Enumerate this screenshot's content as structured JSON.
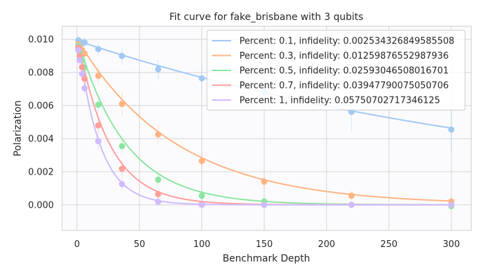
{
  "chart_data": {
    "type": "scatter",
    "title": "Fit curve for fake_brisbane with 3 qubits",
    "xlabel": "Benchmark Depth",
    "ylabel": "Polarization",
    "xlim": [
      -12,
      316
    ],
    "ylim": [
      -0.00155,
      0.0108
    ],
    "xticks": [
      0,
      50,
      100,
      150,
      200,
      250,
      300
    ],
    "yticks": [
      0.0,
      0.002,
      0.004,
      0.006,
      0.008,
      0.01
    ],
    "ytick_labels": [
      "0.000",
      "0.002",
      "0.004",
      "0.006",
      "0.008",
      "0.010"
    ],
    "grid": true,
    "legend_position": "top-right",
    "x": [
      1,
      2,
      4,
      6,
      17,
      36,
      65,
      100,
      150,
      220,
      300
    ],
    "series": [
      {
        "name": "Percent: 0.1, infidelity: 0.002534326849585508",
        "color": "#a1c9f4",
        "decay": 0.002534326849585508,
        "amplitude": 0.0099,
        "values": [
          0.00995,
          0.00982,
          0.00975,
          0.00982,
          0.00942,
          0.009,
          0.0082,
          0.00765,
          0.0068,
          0.00562,
          0.00455
        ],
        "errors": [
          0.0003,
          0.0003,
          0.0003,
          0.0003,
          0.0004,
          0.0005,
          0.0006,
          0.0008,
          0.001,
          0.0012,
          0.0013
        ]
      },
      {
        "name": "Percent: 0.3, infidelity: 0.01259876552987936",
        "color": "#ffb482",
        "decay": 0.01259876552987936,
        "amplitude": 0.0099,
        "values": [
          0.0097,
          0.00955,
          0.00935,
          0.00915,
          0.0078,
          0.0061,
          0.00425,
          0.00265,
          0.0014,
          0.00055,
          0.0002
        ],
        "errors": [
          0.0003,
          0.0003,
          0.0003,
          0.0003,
          0.0005,
          0.0007,
          0.0006,
          0.0005,
          0.0004,
          0.0003,
          0.0002
        ]
      },
      {
        "name": "Percent: 0.5, infidelity: 0.02593046508016701",
        "color": "#8de5a1",
        "decay": 0.02593046508016701,
        "amplitude": 0.0099,
        "values": [
          0.0096,
          0.0092,
          0.00875,
          0.0083,
          0.00605,
          0.00355,
          0.00152,
          0.00055,
          0.0002,
          0.0,
          -8e-05
        ],
        "errors": [
          0.0003,
          0.0003,
          0.0003,
          0.0004,
          0.0005,
          0.0005,
          0.0004,
          0.0003,
          0.0002,
          0.0002,
          0.0002
        ]
      },
      {
        "name": "Percent: 0.7, infidelity: 0.03947790075050706",
        "color": "#ff9f9b",
        "decay": 0.03947790075050706,
        "amplitude": 0.0099,
        "values": [
          0.0095,
          0.009,
          0.00832,
          0.00762,
          0.0048,
          0.00218,
          0.00065,
          5e-05,
          0.0,
          0.0,
          0.0
        ],
        "errors": [
          0.0003,
          0.0003,
          0.0004,
          0.0004,
          0.0005,
          0.0005,
          0.0004,
          0.0003,
          0.0002,
          0.0002,
          0.0002
        ]
      },
      {
        "name": "Percent: 1, infidelity: 0.05750702717346125",
        "color": "#d0bbff",
        "decay": 0.05750702717346125,
        "amplitude": 0.0099,
        "values": [
          0.00935,
          0.00875,
          0.00792,
          0.00705,
          0.00385,
          0.00125,
          0.00018,
          0.0,
          0.0,
          0.0,
          0.0
        ],
        "errors": [
          0.0003,
          0.0003,
          0.0004,
          0.0004,
          0.0005,
          0.0004,
          0.0003,
          0.0002,
          0.0002,
          0.0002,
          0.0002
        ]
      }
    ]
  }
}
